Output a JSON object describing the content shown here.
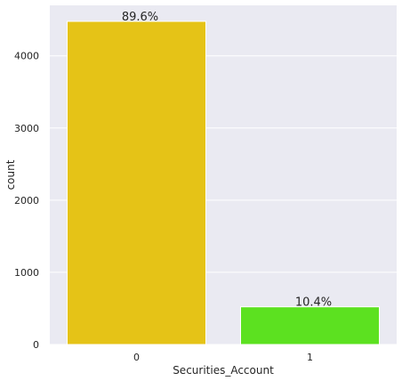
{
  "chart_data": {
    "type": "bar",
    "title": "",
    "xlabel": "Securities_Account",
    "ylabel": "count",
    "categories": [
      "0",
      "1"
    ],
    "values": [
      4478,
      522
    ],
    "data_labels": [
      "89.6%",
      "10.4%"
    ],
    "bar_colors": [
      "#e5c317",
      "#5ce120"
    ],
    "ylim": [
      0,
      4700
    ],
    "yticks": [
      0,
      1000,
      2000,
      3000,
      4000
    ],
    "grid": true,
    "background": "#eaeaf2",
    "grid_color": "#ffffff"
  }
}
